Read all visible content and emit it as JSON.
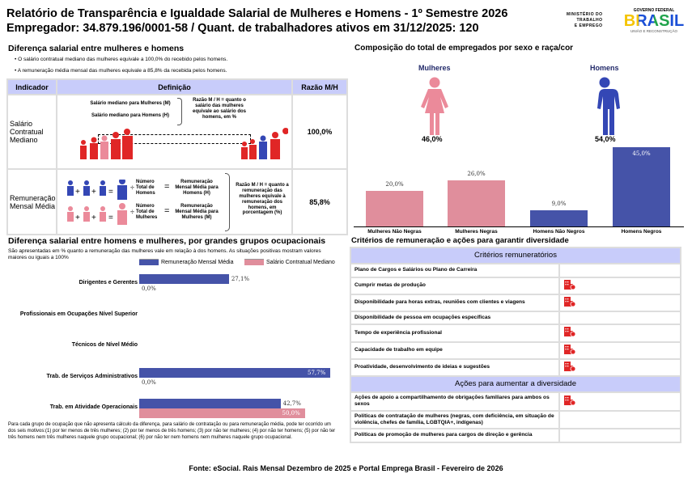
{
  "header": {
    "title": "Relatório de Transparência e Igualdade Salarial de Mulheres e Homens - 1º Semestre 2026",
    "subtitle": "Empregador: 34.879.196/0001-58 / Quant. de trabalhadores ativos em 31/12/2025: 120"
  },
  "logos": {
    "ministry": [
      "MINISTÉRIO DO",
      "TRABALHO",
      "E EMPREGO"
    ],
    "gov_top": "GOVERNO FEDERAL",
    "gov_main": "BRASIL",
    "gov_bottom": "UNIÃO E RECONSTRUÇÃO"
  },
  "salary_gap": {
    "title": "Diferença salarial entre mulheres e homens",
    "bullets": [
      "O salário contratual mediano das mulheres equivale a 100,0% do recebido pelos homens.",
      "A remuneração média mensal das mulheres equivale a 85,8% da recebida pelos homens."
    ],
    "table": {
      "headers": [
        "Indicador",
        "Definição",
        "Razão M/H"
      ],
      "rows": [
        {
          "indicator": "Salário Contratual Mediano",
          "def_lines": [
            "Salário mediano para Mulheres (M)",
            "Salário mediano para Homens (H)"
          ],
          "def_note": "Razão M / H = quanto o salário das mulheres equivale ao salário dos homens, em %",
          "ratio": "100,0%"
        },
        {
          "indicator": "Remuneração Mensal Média",
          "men_count": "Número Total de Homens",
          "men_result": "Remuneração Mensal Média para Homens (H)",
          "women_count": "Número Total de Mulheres",
          "women_result": "Remuneração Mensal Média para Mulheres (M)",
          "def_note": "Razão M / H = quanto a remuneração das mulheres equivale à remuneração dos homens, em porcentagem (%)",
          "ratio": "85,8%"
        }
      ]
    }
  },
  "composition": {
    "title": "Composição do total de empregados por sexo e raça/cor",
    "women_label": "Mulheres",
    "men_label": "Homens",
    "women_pct": "46,0%",
    "men_pct": "54,0%"
  },
  "chart_data": [
    {
      "type": "bar",
      "categories": [
        "Mulheres Não Negras",
        "Mulheres Negras",
        "Homens Não Negros",
        "Homens Negros"
      ],
      "values": [
        20.0,
        26.0,
        9.0,
        45.0
      ],
      "labels": [
        "20,0%",
        "26,0%",
        "9,0%",
        "45,0%"
      ],
      "colors": [
        "#e08e9c",
        "#e08e9c",
        "#4553a8",
        "#4553a8"
      ]
    },
    {
      "type": "bar",
      "orientation": "horizontal",
      "title": "Diferença salarial entre homens e mulheres, por grandes grupos ocupacionais",
      "subtitle": "São apresentadas em % quanto a remuneração das mulheres vale em relação à dos homens. As situações positivas mostram valores maiores ou iguais a 100%",
      "categories": [
        "Dirigentes e Gerentes",
        "Profissionais em Ocupações Nível Superior",
        "Técnicos de Nível Médio",
        "Trab. de Serviços Administrativos",
        "Trab. em Atividade Operacionais"
      ],
      "series": [
        {
          "name": "Remuneração Mensal Média",
          "color": "#4553a8",
          "values": [
            27.1,
            null,
            null,
            57.7,
            42.7
          ],
          "labels": [
            "27,1%",
            "",
            "",
            "57,7%",
            "42,7%"
          ]
        },
        {
          "name": "Salário Contratual Mediano",
          "color": "#e08e9c",
          "values": [
            0.0,
            null,
            null,
            0.0,
            50.0
          ],
          "labels": [
            "0,0%",
            "",
            "",
            "0,0%",
            "50,0%"
          ]
        }
      ],
      "footnote": "Para cada grupo de ocupação que não apresenta cálculo da diferença, para salário de contratação ou para remuneração média, pode ter ocorrido um dos seis motivos:(1) por ter menos de três mulheres; (2) por ter menos de três homens; (3) por não ter mulheres; (4) por não ter homens; (5) por não ter três homens nem três mulheres naquele grupo ocupacional; (6) por não ter nem homens nem mulheres naquele grupo ocupacional."
    }
  ],
  "criteria": {
    "title": "Critérios de remuneração e ações para garantir diversidade",
    "section1": "Critérios remuneratórios",
    "items1": [
      {
        "label": "Plano de Cargos e Salários ou Plano de Carreira",
        "checked": false
      },
      {
        "label": "Cumprir metas de produção",
        "checked": true
      },
      {
        "label": "Disponibilidade para horas extras, reuniões com clientes e viagens",
        "checked": true
      },
      {
        "label": "Disponibilidade de pessoa em ocupações específicas",
        "checked": false
      },
      {
        "label": "Tempo de experiência profissional",
        "checked": true
      },
      {
        "label": "Capacidade de trabalho em equipe",
        "checked": true
      },
      {
        "label": "Proatividade, desenvolvimento de ideias e sugestões",
        "checked": true
      }
    ],
    "section2": "Ações para aumentar a diversidade",
    "items2": [
      {
        "label": "Ações de apoio a compartilhamento de obrigações familiares para ambos os sexos",
        "checked": true
      },
      {
        "label": "Políticas de contratação de mulheres (negras, com deficiência, em situação de violência, chefes de família, LGBTQIA+, indígenas)",
        "checked": false
      },
      {
        "label": "Políticas de promoção de mulheres para cargos de direção e gerência",
        "checked": false
      }
    ]
  },
  "footer": "Fonte: eSocial. Rais Mensal Dezembro de 2025 e Portal Emprega Brasil - Fevereiro de 2026"
}
